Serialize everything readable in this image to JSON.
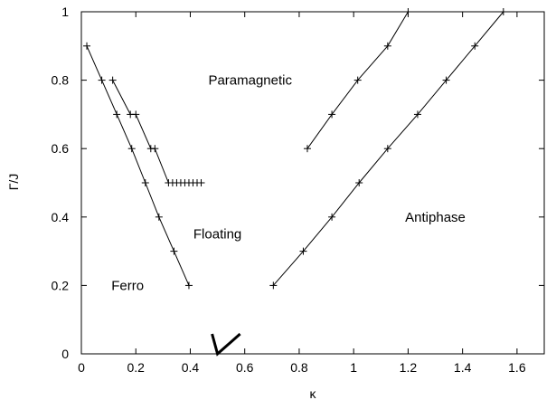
{
  "chart_data": {
    "type": "scatter",
    "title": "",
    "xlabel": "κ",
    "ylabel": "Γ/J",
    "xlim": [
      0,
      1.7
    ],
    "ylim": [
      0,
      1
    ],
    "x_ticks": [
      "0",
      "0.2",
      "0.4",
      "0.6",
      "0.8",
      "1",
      "1.2",
      "1.4",
      "1.6"
    ],
    "y_ticks": [
      "0",
      "0.2",
      "0.4",
      "0.6",
      "0.8",
      "1"
    ],
    "x_tick_values": [
      0,
      0.2,
      0.4,
      0.6,
      0.8,
      1.0,
      1.2,
      1.4,
      1.6
    ],
    "y_tick_values": [
      0,
      0.2,
      0.4,
      0.6,
      0.8,
      1.0
    ],
    "grid": false,
    "marker": "+",
    "series": [
      {
        "points": [
          [
            0.02,
            0.9
          ],
          [
            0.075,
            0.8
          ],
          [
            0.13,
            0.7
          ],
          [
            0.185,
            0.6
          ],
          [
            0.235,
            0.5
          ],
          [
            0.285,
            0.4
          ],
          [
            0.34,
            0.3
          ],
          [
            0.395,
            0.2
          ]
        ]
      },
      {
        "points": [
          [
            0.115,
            0.8
          ],
          [
            0.18,
            0.7
          ],
          [
            0.2,
            0.7
          ],
          [
            0.255,
            0.6
          ],
          [
            0.27,
            0.6
          ],
          [
            0.32,
            0.5
          ],
          [
            0.335,
            0.5
          ],
          [
            0.35,
            0.5
          ],
          [
            0.365,
            0.5
          ],
          [
            0.38,
            0.5
          ],
          [
            0.395,
            0.5
          ],
          [
            0.41,
            0.5
          ],
          [
            0.425,
            0.5
          ],
          [
            0.44,
            0.5
          ]
        ]
      },
      {
        "points": [
          [
            0.705,
            0.2
          ],
          [
            0.815,
            0.3
          ],
          [
            0.92,
            0.4
          ],
          [
            1.02,
            0.5
          ],
          [
            1.125,
            0.6
          ],
          [
            1.235,
            0.7
          ],
          [
            1.34,
            0.8
          ],
          [
            1.445,
            0.9
          ],
          [
            1.55,
            1.0
          ]
        ]
      },
      {
        "points": [
          [
            0.83,
            0.6
          ],
          [
            0.92,
            0.7
          ],
          [
            1.015,
            0.8
          ],
          [
            1.125,
            0.9
          ],
          [
            1.2,
            1.0
          ]
        ]
      }
    ],
    "point_marker": {
      "x": 0.5,
      "y": 0
    },
    "annotations": [
      {
        "text": "Paramagnetic",
        "x": 0.62,
        "y": 0.8
      },
      {
        "text": "Floating",
        "x": 0.5,
        "y": 0.35
      },
      {
        "text": "Antiphase",
        "x": 1.3,
        "y": 0.4
      },
      {
        "text": "Ferro",
        "x": 0.17,
        "y": 0.2
      }
    ]
  }
}
